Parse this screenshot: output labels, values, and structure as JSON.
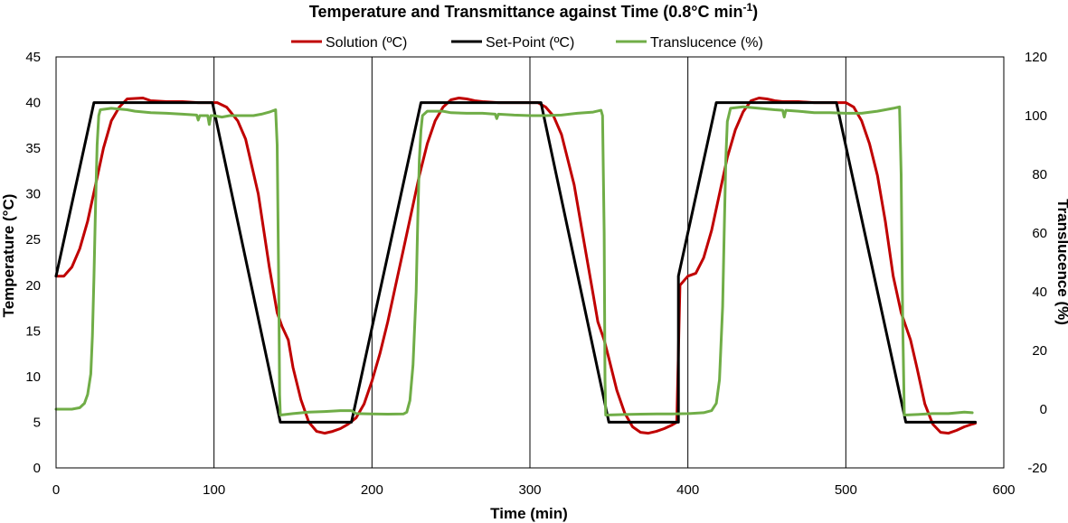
{
  "chart_data": {
    "type": "line",
    "title": "Temperature and Transmittance against Time (0.8°C min",
    "title_superscript": "-1",
    "title_suffix": ")",
    "xlabel": "Time (min)",
    "ylabel": "Temperature (°C)",
    "y2label": "Translucence (%)",
    "xlim": [
      0,
      600
    ],
    "ylim": [
      0,
      45
    ],
    "y2lim": [
      -20,
      120
    ],
    "x_ticks": [
      "0",
      "100",
      "200",
      "300",
      "400",
      "500",
      "600"
    ],
    "y_ticks": [
      "0",
      "5",
      "10",
      "15",
      "20",
      "25",
      "30",
      "35",
      "40",
      "45"
    ],
    "y2_ticks": [
      "-20",
      "0",
      "20",
      "40",
      "60",
      "80",
      "100",
      "120"
    ],
    "grid": "vertical-major",
    "legend_position": "top",
    "series": [
      {
        "name": "Solution (ºC)",
        "color": "#c00000",
        "axis": "left",
        "points": [
          [
            0,
            21
          ],
          [
            5,
            21
          ],
          [
            10,
            22
          ],
          [
            15,
            24
          ],
          [
            20,
            27
          ],
          [
            25,
            31
          ],
          [
            30,
            35
          ],
          [
            35,
            38
          ],
          [
            40,
            39.5
          ],
          [
            45,
            40.4
          ],
          [
            55,
            40.5
          ],
          [
            60,
            40.2
          ],
          [
            70,
            40.1
          ],
          [
            80,
            40.1
          ],
          [
            90,
            40
          ],
          [
            98,
            40
          ],
          [
            102,
            40
          ],
          [
            108,
            39.5
          ],
          [
            115,
            38
          ],
          [
            120,
            36
          ],
          [
            128,
            30
          ],
          [
            135,
            22
          ],
          [
            140,
            17
          ],
          [
            143,
            15.5
          ],
          [
            147,
            14
          ],
          [
            150,
            11
          ],
          [
            155,
            7.5
          ],
          [
            160,
            5
          ],
          [
            165,
            4
          ],
          [
            170,
            3.8
          ],
          [
            175,
            4
          ],
          [
            180,
            4.3
          ],
          [
            185,
            4.8
          ],
          [
            190,
            5.5
          ],
          [
            195,
            7
          ],
          [
            200,
            9.5
          ],
          [
            205,
            12.5
          ],
          [
            210,
            16
          ],
          [
            215,
            20
          ],
          [
            220,
            24
          ],
          [
            225,
            28
          ],
          [
            230,
            32
          ],
          [
            235,
            35.5
          ],
          [
            240,
            38
          ],
          [
            245,
            39.5
          ],
          [
            250,
            40.3
          ],
          [
            255,
            40.5
          ],
          [
            260,
            40.4
          ],
          [
            265,
            40.2
          ],
          [
            270,
            40.1
          ],
          [
            280,
            40
          ],
          [
            290,
            40
          ],
          [
            300,
            40
          ],
          [
            305,
            40
          ],
          [
            310,
            39.5
          ],
          [
            315,
            38.5
          ],
          [
            320,
            36.5
          ],
          [
            328,
            31
          ],
          [
            335,
            24
          ],
          [
            340,
            19
          ],
          [
            343,
            16
          ],
          [
            347,
            14
          ],
          [
            350,
            12
          ],
          [
            355,
            8.5
          ],
          [
            360,
            6
          ],
          [
            365,
            4.5
          ],
          [
            370,
            3.9
          ],
          [
            375,
            3.8
          ],
          [
            380,
            4
          ],
          [
            385,
            4.3
          ],
          [
            390,
            4.7
          ],
          [
            393,
            5
          ],
          [
            395,
            20
          ],
          [
            400,
            21
          ],
          [
            405,
            21.3
          ],
          [
            410,
            23
          ],
          [
            415,
            26
          ],
          [
            420,
            30
          ],
          [
            425,
            34
          ],
          [
            430,
            37
          ],
          [
            435,
            39
          ],
          [
            440,
            40.2
          ],
          [
            445,
            40.5
          ],
          [
            450,
            40.4
          ],
          [
            455,
            40.2
          ],
          [
            460,
            40.1
          ],
          [
            470,
            40.1
          ],
          [
            480,
            40
          ],
          [
            490,
            40
          ],
          [
            500,
            40
          ],
          [
            505,
            39.5
          ],
          [
            510,
            38
          ],
          [
            515,
            35.5
          ],
          [
            520,
            32
          ],
          [
            525,
            27
          ],
          [
            530,
            21
          ],
          [
            535,
            17
          ],
          [
            538,
            15.5
          ],
          [
            541,
            14
          ],
          [
            545,
            11
          ],
          [
            550,
            7
          ],
          [
            555,
            4.8
          ],
          [
            560,
            3.9
          ],
          [
            565,
            3.8
          ],
          [
            570,
            4.1
          ],
          [
            575,
            4.5
          ],
          [
            580,
            4.8
          ],
          [
            582,
            4.9
          ]
        ]
      },
      {
        "name": "Set-Point (ºC)",
        "color": "#000000",
        "axis": "left",
        "points": [
          [
            0,
            21
          ],
          [
            24,
            40
          ],
          [
            99,
            40
          ],
          [
            142,
            5
          ],
          [
            187,
            5
          ],
          [
            231,
            40
          ],
          [
            307,
            40
          ],
          [
            350,
            5
          ],
          [
            394,
            5
          ],
          [
            394,
            21
          ],
          [
            418,
            40
          ],
          [
            494,
            40
          ],
          [
            538,
            5
          ],
          [
            582,
            5
          ]
        ]
      },
      {
        "name": "Translucence (%)",
        "color": "#70ad47",
        "axis": "right",
        "points": [
          [
            0,
            0
          ],
          [
            10,
            0
          ],
          [
            15,
            0.5
          ],
          [
            18,
            2
          ],
          [
            20,
            5
          ],
          [
            22,
            12
          ],
          [
            23,
            25
          ],
          [
            24,
            45
          ],
          [
            25,
            70
          ],
          [
            26,
            90
          ],
          [
            27,
            100
          ],
          [
            28,
            102
          ],
          [
            35,
            102.5
          ],
          [
            45,
            102
          ],
          [
            50,
            101.5
          ],
          [
            60,
            101
          ],
          [
            70,
            100.8
          ],
          [
            80,
            100.5
          ],
          [
            89,
            100.2
          ],
          [
            90,
            98.5
          ],
          [
            91,
            100
          ],
          [
            96,
            100
          ],
          [
            97,
            97
          ],
          [
            98,
            100
          ],
          [
            100,
            100
          ],
          [
            105,
            99.5
          ],
          [
            110,
            100
          ],
          [
            115,
            100
          ],
          [
            120,
            100
          ],
          [
            125,
            100
          ],
          [
            130,
            100.5
          ],
          [
            135,
            101.2
          ],
          [
            139,
            102
          ],
          [
            140,
            90
          ],
          [
            141,
            40
          ],
          [
            141.5,
            5
          ],
          [
            142,
            -2
          ],
          [
            150,
            -1.5
          ],
          [
            160,
            -1
          ],
          [
            170,
            -0.8
          ],
          [
            180,
            -0.5
          ],
          [
            187,
            -0.5
          ],
          [
            190,
            -1.5
          ],
          [
            200,
            -1.6
          ],
          [
            210,
            -1.7
          ],
          [
            220,
            -1.6
          ],
          [
            222,
            -1
          ],
          [
            224,
            3
          ],
          [
            226,
            15
          ],
          [
            228,
            40
          ],
          [
            229,
            65
          ],
          [
            230,
            85
          ],
          [
            231,
            95
          ],
          [
            232,
            100
          ],
          [
            235,
            101.5
          ],
          [
            245,
            101.5
          ],
          [
            250,
            101
          ],
          [
            260,
            100.8
          ],
          [
            270,
            100.8
          ],
          [
            278,
            100.5
          ],
          [
            279,
            99
          ],
          [
            280,
            100.5
          ],
          [
            290,
            100.2
          ],
          [
            300,
            100
          ],
          [
            310,
            100
          ],
          [
            320,
            100.2
          ],
          [
            330,
            100.8
          ],
          [
            340,
            101.2
          ],
          [
            345,
            101.8
          ],
          [
            346,
            100
          ],
          [
            347,
            60
          ],
          [
            347.5,
            10
          ],
          [
            348,
            -2
          ],
          [
            360,
            -1.8
          ],
          [
            370,
            -1.7
          ],
          [
            380,
            -1.6
          ],
          [
            390,
            -1.6
          ],
          [
            400,
            -1.5
          ],
          [
            410,
            -1.2
          ],
          [
            415,
            -0.5
          ],
          [
            418,
            2
          ],
          [
            420,
            10
          ],
          [
            422,
            35
          ],
          [
            423,
            60
          ],
          [
            424,
            85
          ],
          [
            425,
            98
          ],
          [
            427,
            102.5
          ],
          [
            435,
            103
          ],
          [
            445,
            102.5
          ],
          [
            455,
            102
          ],
          [
            460,
            101.8
          ],
          [
            461,
            99.5
          ],
          [
            462,
            101.8
          ],
          [
            470,
            101.5
          ],
          [
            480,
            101
          ],
          [
            490,
            101
          ],
          [
            500,
            100.8
          ],
          [
            510,
            100.8
          ],
          [
            520,
            101.5
          ],
          [
            530,
            102.5
          ],
          [
            534,
            103
          ],
          [
            535,
            80
          ],
          [
            536,
            30
          ],
          [
            537,
            -2
          ],
          [
            545,
            -1.8
          ],
          [
            555,
            -1.5
          ],
          [
            565,
            -1.5
          ],
          [
            575,
            -1
          ],
          [
            580,
            -1.2
          ]
        ]
      }
    ]
  }
}
